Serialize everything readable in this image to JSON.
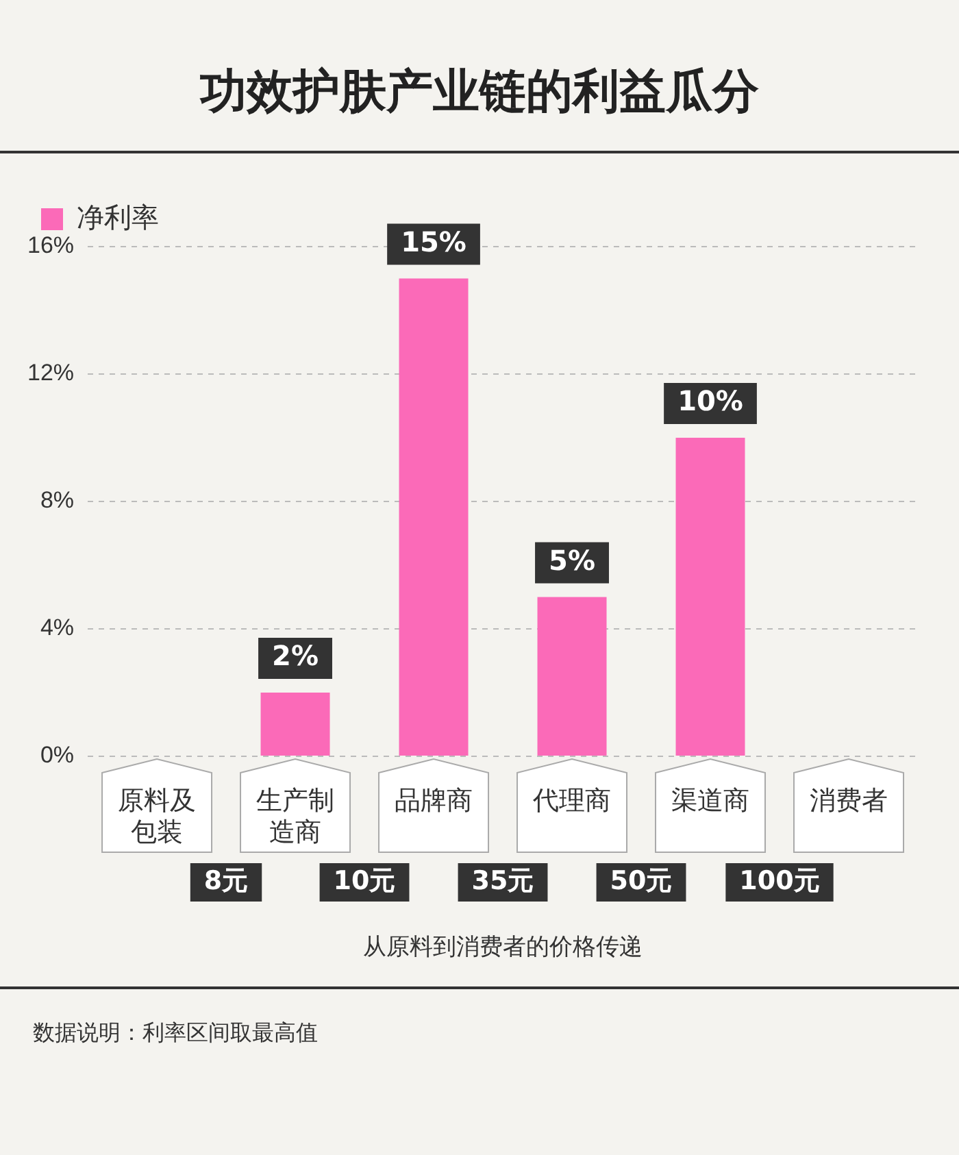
{
  "chart_data": {
    "type": "bar",
    "title": "功效护肤产业链的利益瓜分",
    "xlabel": "从原料到消费者的价格传递",
    "categories": [
      "原料及包装",
      "生产制造商",
      "品牌商",
      "代理商",
      "渠道商",
      "消费者"
    ],
    "series": [
      {
        "name": "净利率",
        "color": "#fb6ab8",
        "values": [
          null,
          2,
          15,
          5,
          10,
          null
        ],
        "value_labels": [
          null,
          "2%",
          "15%",
          "5%",
          "10%",
          null
        ]
      }
    ],
    "ylim": [
      0,
      16
    ],
    "yticks": [
      {
        "value": 0,
        "label": "0%"
      },
      {
        "value": 4,
        "label": "4%"
      },
      {
        "value": 8,
        "label": "8%"
      },
      {
        "value": 12,
        "label": "12%"
      },
      {
        "value": 16,
        "label": "16%"
      }
    ],
    "grid": "y",
    "legend": "top left",
    "annotations": [
      "8元",
      "10元",
      "35元",
      "50元",
      "100元",
      "数据说明：利率区间取最高值"
    ]
  }
}
